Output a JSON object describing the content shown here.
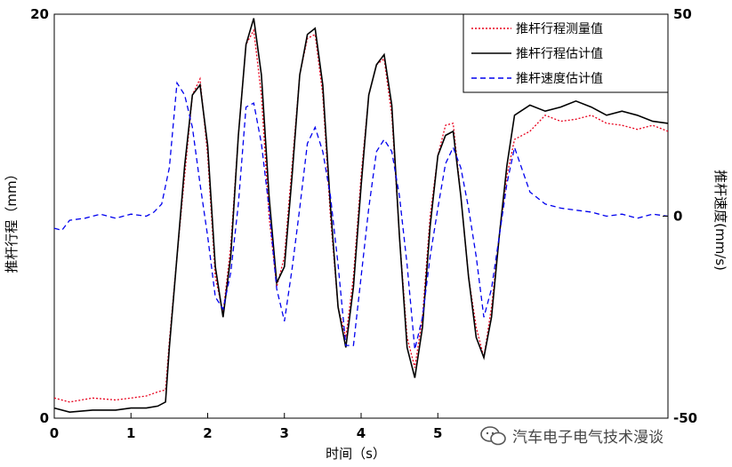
{
  "chart_data": {
    "type": "line",
    "xlabel": "时间（s）",
    "ylabel_left": "推杆行程（mm）",
    "ylabel_right": "推杆速度(mm/s)",
    "xlim": [
      0,
      8
    ],
    "ylim_left": [
      0,
      20
    ],
    "ylim_right": [
      -50,
      50
    ],
    "x_ticks": [
      "0",
      "1",
      "2",
      "3",
      "4",
      "5"
    ],
    "y_left_ticks": [
      "0",
      "20"
    ],
    "y_right_ticks": [
      "-50",
      "0",
      "50"
    ],
    "legend_position": "top-right",
    "series": [
      {
        "name": "推杆行程测量值",
        "axis": "left",
        "color": "#e8001c",
        "style": "dotted",
        "x": [
          0,
          0.2,
          0.5,
          0.8,
          1.0,
          1.2,
          1.35,
          1.45,
          1.5,
          1.6,
          1.7,
          1.8,
          1.9,
          2.0,
          2.1,
          2.2,
          2.3,
          2.4,
          2.5,
          2.6,
          2.7,
          2.8,
          2.9,
          3.0,
          3.1,
          3.2,
          3.3,
          3.4,
          3.5,
          3.6,
          3.7,
          3.8,
          3.9,
          4.0,
          4.1,
          4.2,
          4.3,
          4.4,
          4.5,
          4.6,
          4.7,
          4.8,
          4.9,
          5.0,
          5.1,
          5.2,
          5.3,
          5.4,
          5.5,
          5.6,
          5.7,
          5.8,
          5.9,
          6.0,
          6.2,
          6.4,
          6.6,
          6.8,
          7.0,
          7.2,
          7.4,
          7.6,
          7.8,
          8.0
        ],
        "y": [
          1.0,
          0.8,
          1.0,
          0.9,
          1.0,
          1.1,
          1.3,
          1.4,
          3.8,
          8.0,
          12.0,
          16.0,
          16.8,
          13.0,
          7.0,
          5.2,
          8.5,
          14.0,
          18.5,
          19.2,
          16.0,
          10.0,
          6.5,
          8.0,
          12.5,
          17.0,
          18.8,
          19.0,
          16.0,
          10.0,
          5.5,
          4.0,
          7.0,
          12.0,
          16.0,
          17.5,
          17.8,
          15.0,
          9.0,
          4.0,
          2.5,
          5.0,
          10.0,
          13.0,
          14.5,
          14.6,
          11.0,
          7.0,
          4.5,
          3.0,
          5.5,
          9.0,
          12.0,
          13.8,
          14.2,
          15.0,
          14.7,
          14.8,
          15.0,
          14.6,
          14.5,
          14.3,
          14.5,
          14.2
        ]
      },
      {
        "name": "推杆行程估计值",
        "axis": "left",
        "color": "#000000",
        "style": "solid",
        "x": [
          0,
          0.2,
          0.5,
          0.8,
          1.0,
          1.2,
          1.35,
          1.45,
          1.5,
          1.6,
          1.7,
          1.8,
          1.9,
          2.0,
          2.1,
          2.2,
          2.3,
          2.4,
          2.5,
          2.6,
          2.7,
          2.8,
          2.9,
          3.0,
          3.1,
          3.2,
          3.3,
          3.4,
          3.5,
          3.6,
          3.7,
          3.8,
          3.9,
          4.0,
          4.1,
          4.2,
          4.3,
          4.4,
          4.5,
          4.6,
          4.7,
          4.8,
          4.9,
          5.0,
          5.1,
          5.2,
          5.3,
          5.4,
          5.5,
          5.6,
          5.7,
          5.8,
          5.9,
          6.0,
          6.2,
          6.4,
          6.6,
          6.8,
          7.0,
          7.2,
          7.4,
          7.6,
          7.8,
          8.0
        ],
        "y": [
          0.5,
          0.3,
          0.4,
          0.4,
          0.5,
          0.5,
          0.6,
          0.8,
          3.5,
          8.0,
          12.5,
          16.0,
          16.5,
          13.5,
          7.5,
          5.0,
          8.0,
          14.0,
          18.5,
          19.8,
          17.0,
          11.0,
          6.7,
          7.5,
          12.0,
          17.0,
          19.0,
          19.3,
          16.5,
          10.5,
          5.5,
          3.5,
          6.5,
          11.5,
          16.0,
          17.5,
          18.0,
          15.5,
          9.0,
          3.5,
          2.0,
          4.5,
          9.5,
          13.0,
          14.0,
          14.2,
          11.0,
          7.0,
          4.0,
          3.0,
          5.0,
          9.0,
          12.5,
          15.0,
          15.5,
          15.2,
          15.4,
          15.7,
          15.4,
          15.0,
          15.2,
          15.0,
          14.7,
          14.6
        ]
      },
      {
        "name": "推杆速度估计值",
        "axis": "right",
        "color": "#0000ee",
        "style": "dashed",
        "x": [
          0,
          0.1,
          0.2,
          0.4,
          0.6,
          0.8,
          1.0,
          1.2,
          1.3,
          1.4,
          1.5,
          1.6,
          1.7,
          1.8,
          1.9,
          2.0,
          2.1,
          2.2,
          2.3,
          2.4,
          2.5,
          2.6,
          2.7,
          2.8,
          2.9,
          3.0,
          3.1,
          3.2,
          3.3,
          3.4,
          3.5,
          3.6,
          3.7,
          3.8,
          3.9,
          4.0,
          4.1,
          4.2,
          4.3,
          4.4,
          4.5,
          4.6,
          4.7,
          4.8,
          4.9,
          5.0,
          5.1,
          5.2,
          5.3,
          5.4,
          5.5,
          5.6,
          5.7,
          5.8,
          5.9,
          6.0,
          6.2,
          6.4,
          6.6,
          6.8,
          7.0,
          7.2,
          7.4,
          7.6,
          7.8,
          8.0
        ],
        "y": [
          -3.0,
          -3.5,
          -1.0,
          -0.5,
          0.5,
          -0.5,
          0.5,
          0.0,
          1.0,
          3.0,
          12.0,
          33.0,
          30.0,
          22.0,
          8.0,
          -5.0,
          -20.0,
          -23.0,
          -14.0,
          3.0,
          27.0,
          28.0,
          18.0,
          2.0,
          -18.0,
          -26.0,
          -13.0,
          2.0,
          18.0,
          22.0,
          16.0,
          5.0,
          -12.0,
          -32.0,
          -32.0,
          -15.0,
          2.0,
          16.0,
          19.0,
          16.0,
          5.0,
          -12.0,
          -33.0,
          -25.0,
          -10.0,
          2.0,
          13.0,
          17.0,
          12.0,
          2.0,
          -10.0,
          -25.0,
          -18.0,
          -5.0,
          8.0,
          17.0,
          6.0,
          3.0,
          2.0,
          1.5,
          1.0,
          0.0,
          0.5,
          -0.5,
          0.5,
          0.0
        ]
      }
    ]
  },
  "watermark": {
    "text": "汽车电子电气技术漫谈"
  }
}
